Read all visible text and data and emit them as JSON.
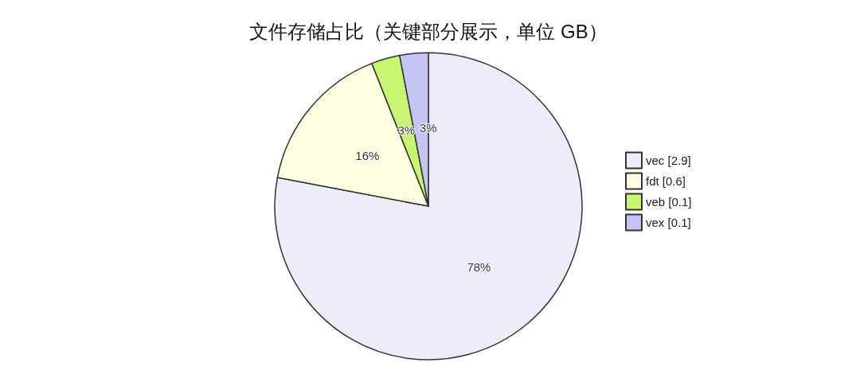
{
  "chart_data": {
    "type": "pie",
    "title": "文件存储占比（关键部分展示，单位 GB）",
    "categories": [
      "vec [2.9]",
      "fdt [0.6]",
      "veb [0.1]",
      "vex [0.1]"
    ],
    "values": [
      78,
      16,
      3,
      3
    ],
    "value_labels": [
      "78%",
      "16%",
      "3%",
      "3%"
    ],
    "colors": [
      "#ececfb",
      "#fefee0",
      "#c6f76e",
      "#c4c4f5"
    ],
    "legend": "right"
  }
}
